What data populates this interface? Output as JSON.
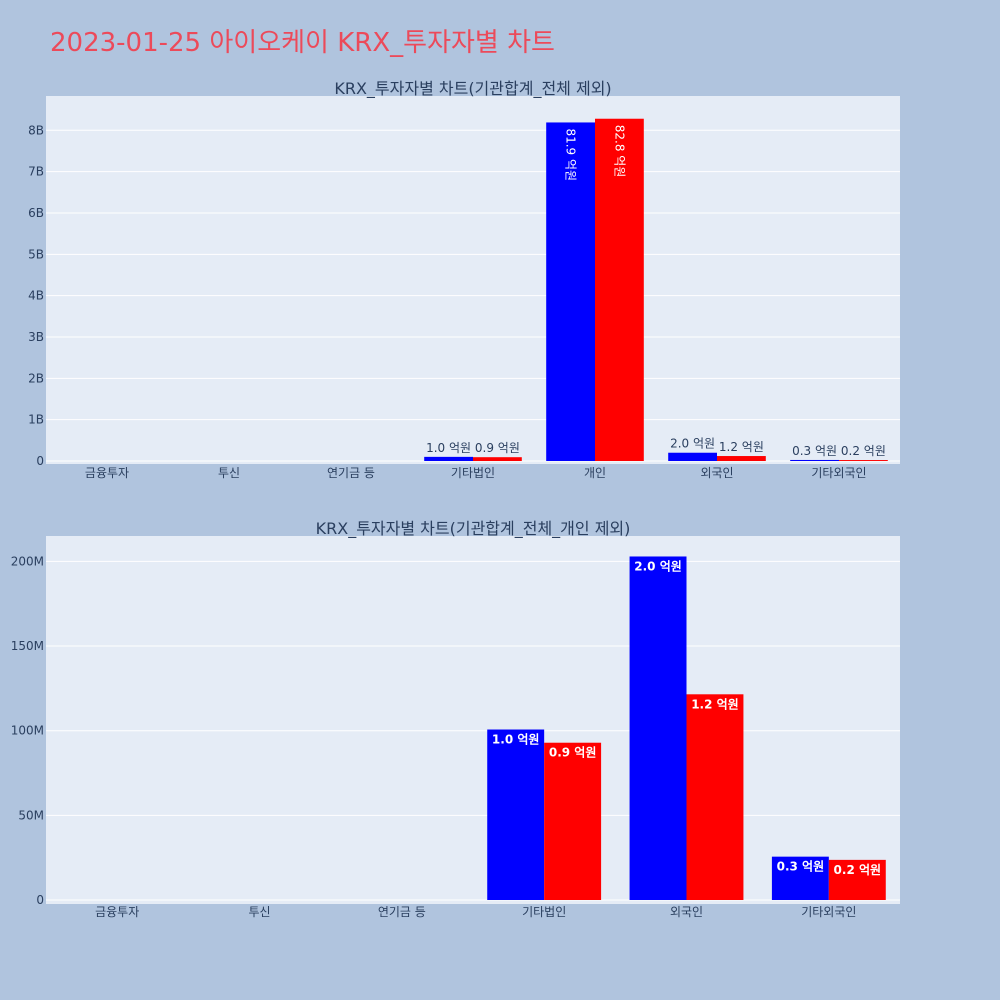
{
  "page_title": "2023-01-25 아이오케이 KRX_투자자별 차트",
  "colors": {
    "series_a": "#0000ff",
    "series_b": "#ff0000",
    "title": "#ec4a5a",
    "background": "#b0c4de",
    "plot_bg": "#e5ecf6"
  },
  "chart_data": [
    {
      "type": "bar",
      "title": "KRX_투자자별 차트(기관합계_전체 제외)",
      "categories": [
        "금융투자",
        "투신",
        "연기금 등",
        "기타법인",
        "개인",
        "외국인",
        "기타외국인"
      ],
      "series": [
        {
          "values": [
            0,
            0,
            0,
            100000000,
            8190000000,
            200000000,
            25000000
          ],
          "labels": [
            "",
            "",
            "",
            "1.0 억원",
            "81.9 억원",
            "2.0 억원",
            "0.3 억원"
          ]
        },
        {
          "values": [
            0,
            0,
            0,
            92000000,
            8280000000,
            120000000,
            23000000
          ],
          "labels": [
            "",
            "",
            "",
            "0.9 억원",
            "82.8 억원",
            "1.2 억원",
            "0.2 억원"
          ]
        }
      ],
      "yticks": [
        0,
        1000000000,
        2000000000,
        3000000000,
        4000000000,
        5000000000,
        6000000000,
        7000000000,
        8000000000
      ],
      "ytick_labels": [
        "0",
        "1B",
        "2B",
        "3B",
        "4B",
        "5B",
        "6B",
        "7B",
        "8B"
      ],
      "ylim": [
        0,
        8830000000
      ],
      "grid": true
    },
    {
      "type": "bar",
      "title": "KRX_투자자별 차트(기관합계_전체_개인 제외)",
      "categories": [
        "금융투자",
        "투신",
        "연기금 등",
        "기타법인",
        "외국인",
        "기타외국인"
      ],
      "series": [
        {
          "values": [
            0,
            0,
            0,
            100700000,
            202900000,
            25600000
          ],
          "labels": [
            "",
            "",
            "",
            "1.0 억원",
            "2.0 억원",
            "0.3 억원"
          ]
        },
        {
          "values": [
            0,
            0,
            0,
            92900000,
            121500000,
            23700000
          ],
          "labels": [
            "",
            "",
            "",
            "0.9 억원",
            "1.2 억원",
            "0.2 억원"
          ]
        }
      ],
      "yticks": [
        0,
        50000000,
        100000000,
        150000000,
        200000000
      ],
      "ytick_labels": [
        "0",
        "50M",
        "100M",
        "150M",
        "200M"
      ],
      "ylim": [
        0,
        215000000
      ],
      "grid": true
    }
  ]
}
